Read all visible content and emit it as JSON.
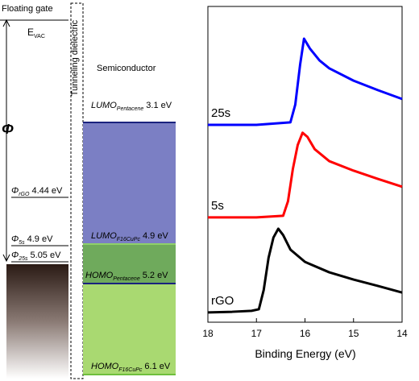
{
  "diagram": {
    "floating_gate": "Floating gate",
    "tunneling_dielectric": "Tunneling dielectric",
    "semiconductor": "Semiconductor",
    "vacuum_level": {
      "label": "E",
      "subscript": "VAC"
    },
    "phi": "Φ",
    "work_functions": [
      {
        "label": "Φ",
        "subscript": "rGO",
        "value": "4.44 eV"
      },
      {
        "label": "Φ",
        "subscript": "5s",
        "value": "4.9 eV"
      },
      {
        "label": "Φ",
        "subscript": "25s",
        "value": "5.05 eV"
      }
    ],
    "levels": [
      {
        "label": "LUMO",
        "subscript": "Pentacene",
        "value": "3.1 eV"
      },
      {
        "label": "LUMO",
        "subscript": "F16CuPc",
        "value": "4.9 eV"
      },
      {
        "label": "HOMO",
        "subscript": "Pentacene",
        "value": "5.2 eV"
      },
      {
        "label": "HOMO",
        "subscript": "F16CuPc",
        "value": "6.1 eV"
      }
    ]
  },
  "chart_data": {
    "type": "line",
    "x_label": "Binding Energy (eV)",
    "xlim": [
      18,
      14
    ],
    "xticks": [
      18,
      17,
      16,
      15,
      14
    ],
    "ylim": [
      0,
      100
    ],
    "series": [
      {
        "name": "25s",
        "color": "#0000ff",
        "x": [
          18.0,
          17.0,
          16.3,
          16.2,
          16.1,
          16.02,
          15.9,
          15.7,
          15.5,
          15.0,
          14.5,
          14.0
        ],
        "values": [
          62.5,
          62.5,
          63.3,
          68.9,
          81.6,
          89.8,
          86.7,
          82.9,
          80.4,
          76.5,
          73.5,
          70.7
        ]
      },
      {
        "name": "5s",
        "color": "#ff0000",
        "x": [
          18.0,
          17.0,
          16.45,
          16.35,
          16.25,
          16.15,
          16.05,
          15.95,
          15.8,
          15.5,
          15.0,
          14.5,
          14.0
        ],
        "values": [
          33.2,
          33.2,
          33.7,
          38.3,
          48.5,
          56.1,
          60.0,
          58.7,
          54.8,
          51.0,
          48.0,
          45.4,
          42.9
        ]
      },
      {
        "name": "rGO",
        "color": "#000000",
        "x": [
          18.0,
          17.5,
          17.1,
          16.95,
          16.85,
          16.75,
          16.65,
          16.55,
          16.45,
          16.3,
          16.0,
          15.5,
          15.0,
          14.5,
          14.0
        ],
        "values": [
          3.1,
          3.3,
          3.6,
          4.1,
          10.2,
          20.4,
          26.8,
          29.6,
          27.6,
          23.0,
          19.1,
          15.8,
          13.5,
          11.5,
          9.4
        ]
      }
    ]
  }
}
